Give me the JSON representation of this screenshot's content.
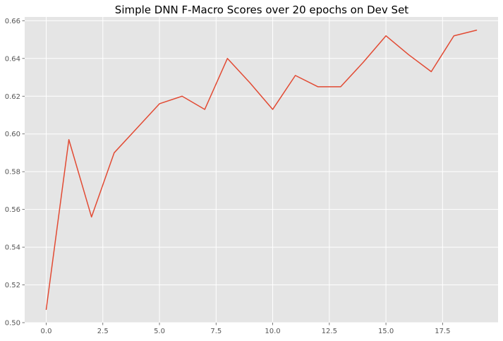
{
  "chart_data": {
    "type": "line",
    "title": "Simple DNN F-Macro Scores over 20 epochs on Dev Set",
    "xlabel": "",
    "ylabel": "",
    "xlim": [
      -0.95,
      19.95
    ],
    "ylim": [
      0.5,
      0.662
    ],
    "x_ticks": [
      0.0,
      2.5,
      5.0,
      7.5,
      10.0,
      12.5,
      15.0,
      17.5
    ],
    "x_tick_labels": [
      "0.0",
      "2.5",
      "5.0",
      "7.5",
      "10.0",
      "12.5",
      "15.0",
      "17.5"
    ],
    "y_ticks": [
      0.5,
      0.52,
      0.54,
      0.56,
      0.58,
      0.6,
      0.62,
      0.64,
      0.66
    ],
    "y_tick_labels": [
      "0.50",
      "0.52",
      "0.54",
      "0.56",
      "0.58",
      "0.60",
      "0.62",
      "0.64",
      "0.66"
    ],
    "grid": true,
    "style": "ggplot",
    "background_color": "#e5e5e5",
    "grid_color": "#ffffff",
    "series": [
      {
        "color": "#e24a33",
        "x": [
          0,
          1,
          2,
          3,
          4,
          5,
          6,
          7,
          8,
          9,
          10,
          11,
          12,
          13,
          14,
          15,
          16,
          17,
          18,
          19
        ],
        "y": [
          0.507,
          0.597,
          0.556,
          0.59,
          0.603,
          0.616,
          0.62,
          0.613,
          0.64,
          0.627,
          0.613,
          0.631,
          0.625,
          0.625,
          0.638,
          0.652,
          0.642,
          0.633,
          0.652,
          0.655
        ]
      }
    ]
  }
}
